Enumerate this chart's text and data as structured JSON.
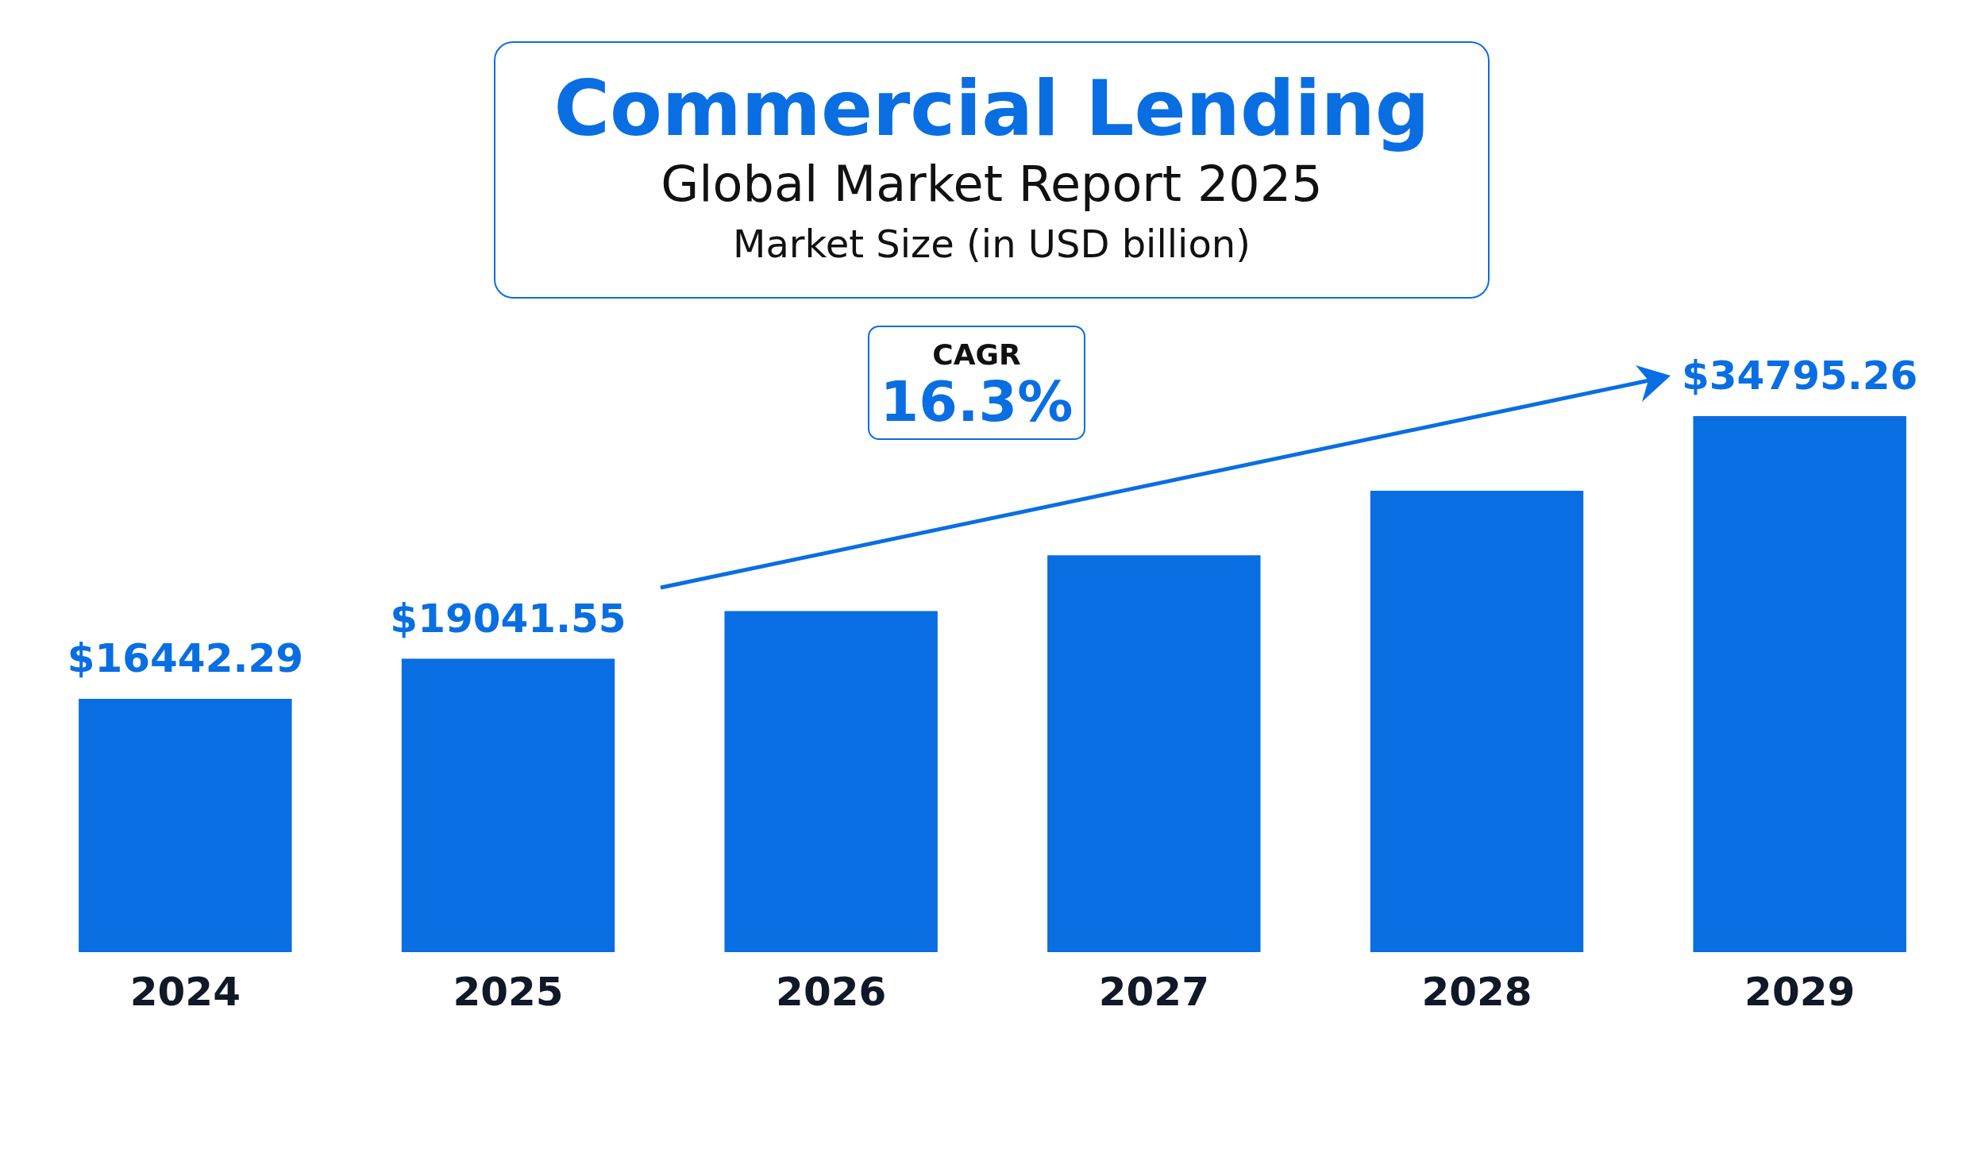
{
  "chart_data": {
    "type": "bar",
    "title": "Commercial Lending",
    "subtitle": "Global Market Report 2025",
    "annotations": [
      "Market Size (in USD billion)",
      "CAGR",
      "16.3%"
    ],
    "categories": [
      "2024",
      "2025",
      "2026",
      "2027",
      "2028",
      "2029"
    ],
    "values": [
      16442.29,
      19041.55,
      22145,
      25755,
      29953,
      34795.26
    ],
    "value_labels": [
      "$16442.29",
      "$19041.55",
      null,
      null,
      null,
      "$34795.26"
    ],
    "color": "#0a6ee3",
    "tick_labels": "x",
    "grid": false,
    "legend": false
  }
}
